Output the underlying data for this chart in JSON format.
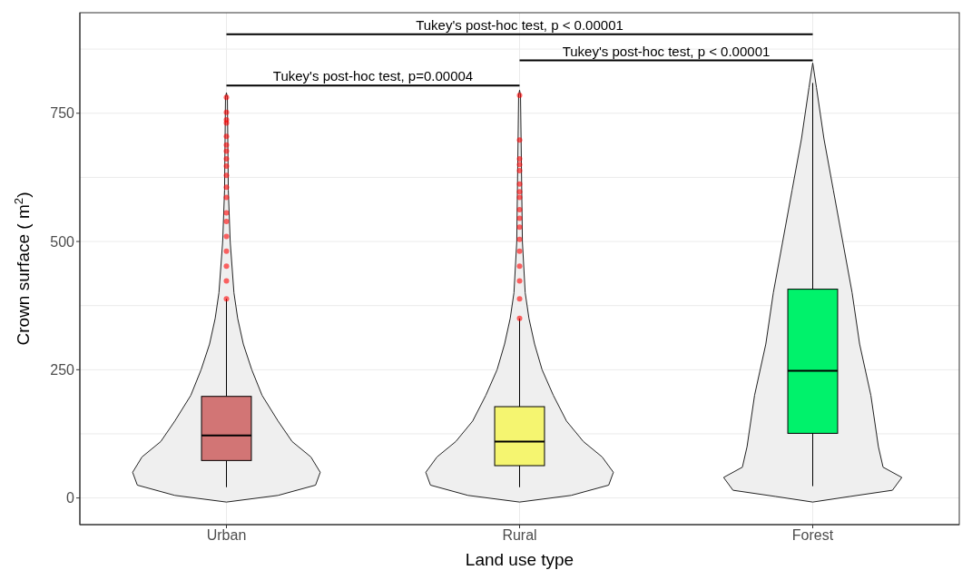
{
  "chart_data": {
    "type": "box",
    "xlabel": "Land use type",
    "ylabel": "Crown surface ( m$^{2}$)",
    "categories": [
      "Urban",
      "Rural",
      "Forest"
    ],
    "colors": [
      "#d27575",
      "#f5f570",
      "#00f26b"
    ],
    "boxes": [
      {
        "low": 21,
        "q1": 73,
        "median": 122,
        "q3": 198,
        "high": 388,
        "outliers": [
          388,
          423,
          452,
          481,
          510,
          539,
          556,
          586,
          606,
          629,
          647,
          661,
          676,
          688,
          705,
          731,
          737,
          752,
          781
        ]
      },
      {
        "low": 21,
        "q1": 63,
        "median": 110,
        "q3": 178,
        "high": 350,
        "outliers": [
          350,
          388,
          423,
          452,
          481,
          504,
          528,
          545,
          562,
          586,
          597,
          612,
          638,
          650,
          661,
          698,
          785
        ]
      },
      {
        "low": 23,
        "q1": 126,
        "median": 248,
        "q3": 407,
        "high": 809
      }
    ],
    "ylim": [
      -52,
      946
    ],
    "yticks": [
      0,
      250,
      500,
      750
    ],
    "grid": true,
    "annotations": [
      "Tukey's post-hoc test, p < 0.00001",
      "Tukey's post-hoc test, p < 0.00001",
      "Tukey's post-hoc test, p=0.00004"
    ]
  }
}
